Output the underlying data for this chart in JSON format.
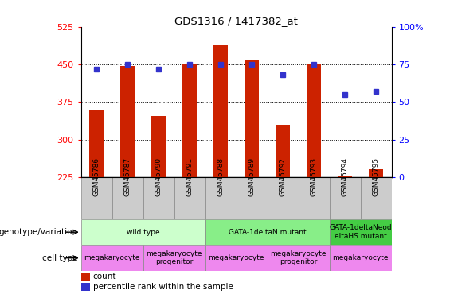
{
  "title": "GDS1316 / 1417382_at",
  "samples": [
    "GSM45786",
    "GSM45787",
    "GSM45790",
    "GSM45791",
    "GSM45788",
    "GSM45789",
    "GSM45792",
    "GSM45793",
    "GSM45794",
    "GSM45795"
  ],
  "counts": [
    360,
    447,
    347,
    450,
    490,
    460,
    330,
    450,
    228,
    240
  ],
  "percentiles": [
    72,
    75,
    72,
    75,
    75,
    75,
    68,
    75,
    55,
    57
  ],
  "ylim_left": [
    225,
    525
  ],
  "ylim_right": [
    0,
    100
  ],
  "yticks_left": [
    225,
    300,
    375,
    450,
    525
  ],
  "yticks_right": [
    0,
    25,
    50,
    75,
    100
  ],
  "ytick_right_labels": [
    "0",
    "25",
    "50",
    "75",
    "100%"
  ],
  "bar_color": "#cc2200",
  "dot_color": "#3333cc",
  "bar_width": 0.45,
  "genotype_groups": [
    {
      "label": "wild type",
      "cols": [
        0,
        1,
        2,
        3
      ],
      "color": "#ccffcc"
    },
    {
      "label": "GATA-1deltaN mutant",
      "cols": [
        4,
        5,
        6,
        7
      ],
      "color": "#88ee88"
    },
    {
      "label": "GATA-1deltaNeod\neltaHS mutant",
      "cols": [
        8,
        9
      ],
      "color": "#44cc44"
    }
  ],
  "cell_type_groups": [
    {
      "label": "megakaryocyte",
      "cols": [
        0,
        1
      ],
      "color": "#ee88ee"
    },
    {
      "label": "megakaryocyte\nprogenitor",
      "cols": [
        2,
        3
      ],
      "color": "#ee88ee"
    },
    {
      "label": "megakaryocyte",
      "cols": [
        4,
        5
      ],
      "color": "#ee88ee"
    },
    {
      "label": "megakaryocyte\nprogenitor",
      "cols": [
        6,
        7
      ],
      "color": "#ee88ee"
    },
    {
      "label": "megakaryocyte",
      "cols": [
        8,
        9
      ],
      "color": "#ee88ee"
    }
  ],
  "genotype_label": "genotype/variation",
  "cell_type_label": "cell type",
  "legend_count_label": "count",
  "legend_percentile_label": "percentile rank within the sample",
  "tick_box_color": "#cccccc",
  "tick_box_edge_color": "#888888"
}
